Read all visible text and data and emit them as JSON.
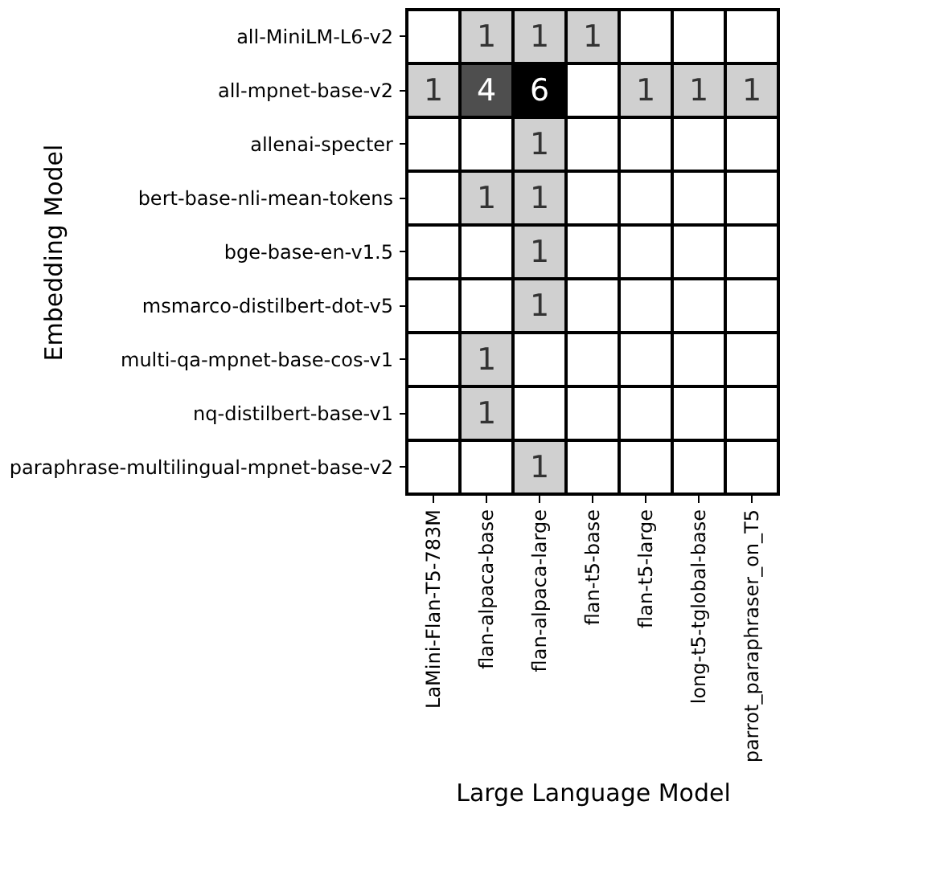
{
  "chart_data": {
    "type": "heatmap",
    "xlabel": "Large Language Model",
    "ylabel": "Embedding Model",
    "categories": [
      "LaMini-Flan-T5-783M",
      "flan-alpaca-base",
      "flan-alpaca-large",
      "flan-t5-base",
      "flan-t5-large",
      "long-t5-tglobal-base",
      "parrot_paraphraser_on_T5"
    ],
    "y_categories": [
      "all-MiniLM-L6-v2",
      "all-mpnet-base-v2",
      "allenai-specter",
      "bert-base-nli-mean-tokens",
      "bge-base-en-v1.5",
      "msmarco-distilbert-dot-v5",
      "multi-qa-mpnet-base-cos-v1",
      "nq-distilbert-base-v1",
      "paraphrase-multilingual-mpnet-base-v2"
    ],
    "cells": [
      [
        null,
        1,
        1,
        1,
        null,
        null,
        null
      ],
      [
        1,
        4,
        6,
        null,
        1,
        1,
        1
      ],
      [
        null,
        null,
        1,
        null,
        null,
        null,
        null
      ],
      [
        null,
        1,
        1,
        null,
        null,
        null,
        null
      ],
      [
        null,
        null,
        1,
        null,
        null,
        null,
        null
      ],
      [
        null,
        null,
        1,
        null,
        null,
        null,
        null
      ],
      [
        null,
        1,
        null,
        null,
        null,
        null,
        null
      ],
      [
        null,
        1,
        null,
        null,
        null,
        null,
        null
      ],
      [
        null,
        null,
        1,
        null,
        null,
        null,
        null
      ]
    ],
    "data_labels": true,
    "grid": false,
    "legend": false
  }
}
